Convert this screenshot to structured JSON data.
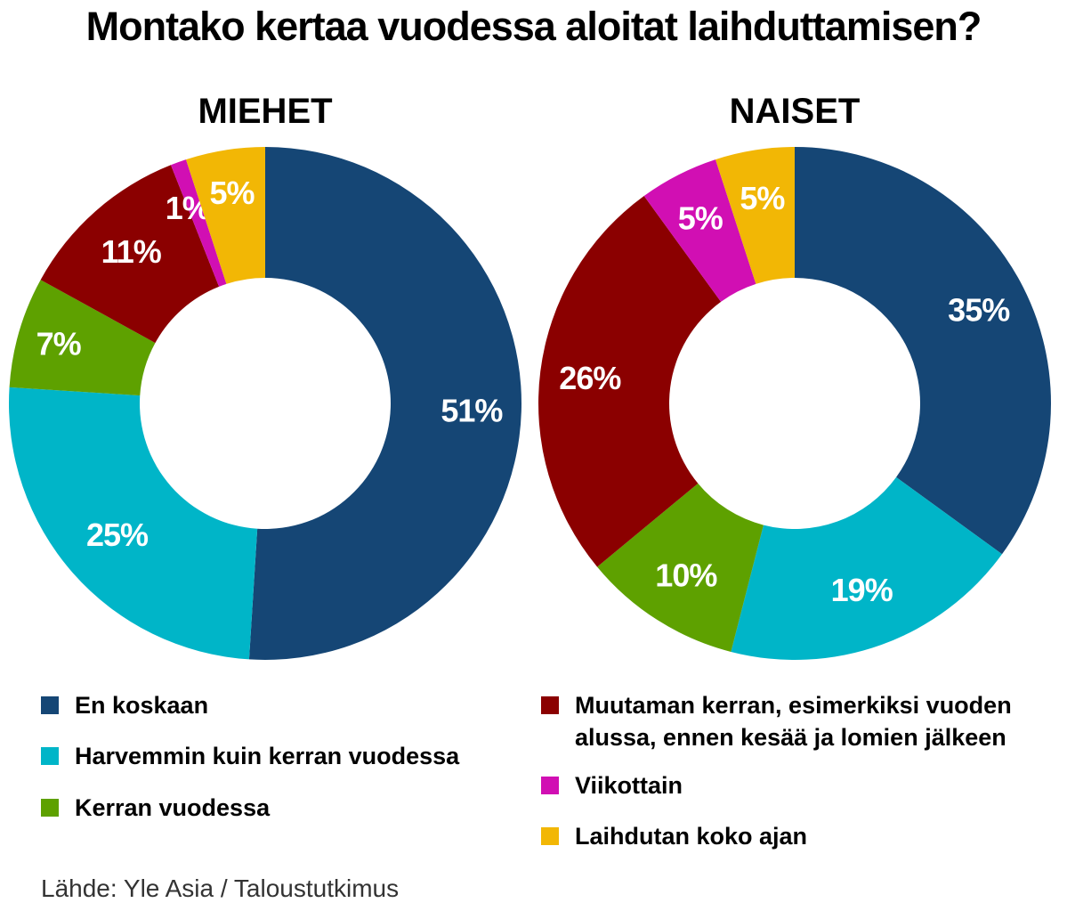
{
  "title": "Montako kertaa vuodessa aloitat laihduttamisen?",
  "source": "Lähde: Yle Asia / Taloustutkimus",
  "legend": [
    {
      "key": "never",
      "label": "En koskaan",
      "color": "#154675"
    },
    {
      "key": "rarely",
      "label": "Harvemmin kuin kerran vuodessa",
      "color": "#00b5c8"
    },
    {
      "key": "yearly",
      "label": "Kerran vuodessa",
      "color": "#5ea100"
    },
    {
      "key": "few",
      "label": "Muutaman kerran, esimerkiksi vuoden alussa, ennen kesää ja lomien jälkeen",
      "color": "#8b0000"
    },
    {
      "key": "weekly",
      "label": "Viikottain",
      "color": "#d10fb3"
    },
    {
      "key": "always",
      "label": "Laihdutan koko ajan",
      "color": "#f2b705"
    }
  ],
  "chart_data": [
    {
      "type": "pie",
      "title": "MIEHET",
      "series": [
        {
          "name": "En koskaan",
          "value": 51,
          "label": "51%"
        },
        {
          "name": "Harvemmin kuin kerran vuodessa",
          "value": 25,
          "label": "25%"
        },
        {
          "name": "Kerran vuodessa",
          "value": 7,
          "label": "7%"
        },
        {
          "name": "Muutaman kerran, esimerkiksi vuoden alussa, ennen kesää ja lomien jälkeen",
          "value": 11,
          "label": "11%"
        },
        {
          "name": "Viikottain",
          "value": 1,
          "label": "1%"
        },
        {
          "name": "Laihdutan koko ajan",
          "value": 5,
          "label": "5%"
        }
      ]
    },
    {
      "type": "pie",
      "title": "NAISET",
      "series": [
        {
          "name": "En koskaan",
          "value": 35,
          "label": "35%"
        },
        {
          "name": "Harvemmin kuin kerran vuodessa",
          "value": 19,
          "label": "19%"
        },
        {
          "name": "Kerran vuodessa",
          "value": 10,
          "label": "10%"
        },
        {
          "name": "Muutaman kerran, esimerkiksi vuoden alussa, ennen kesää ja lomien jälkeen",
          "value": 26,
          "label": "26%"
        },
        {
          "name": "Viikottain",
          "value": 5,
          "label": "5%"
        },
        {
          "name": "Laihdutan koko ajan",
          "value": 5,
          "label": "5%"
        }
      ]
    }
  ]
}
